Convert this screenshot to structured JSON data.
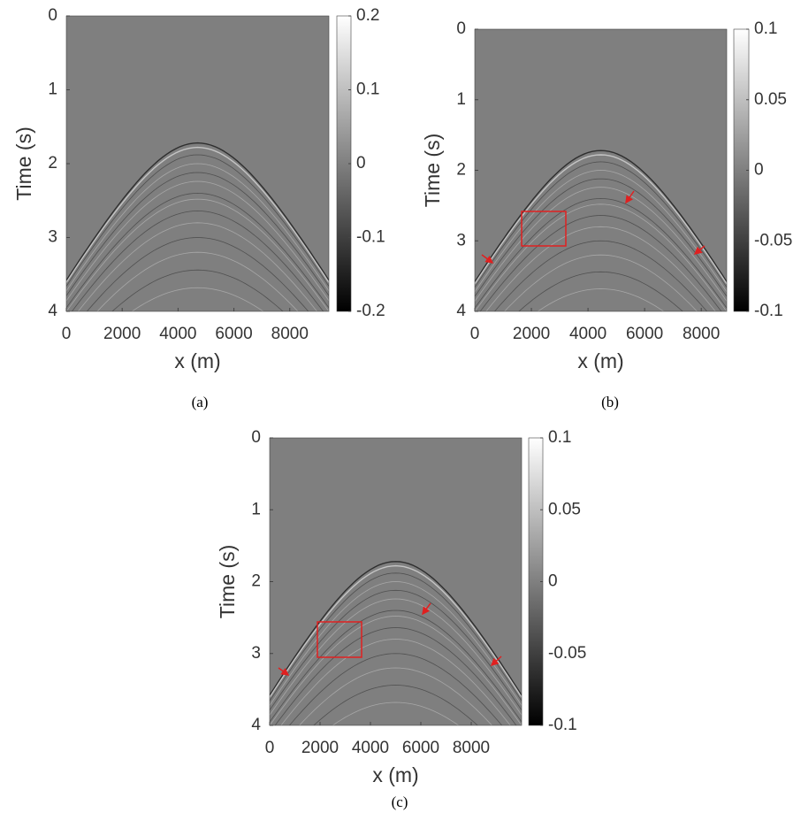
{
  "chart_data": [
    {
      "type": "image",
      "caption": "(a)",
      "xlabel": "x (m)",
      "ylabel": "Time (s)",
      "xlim": [
        0,
        9400
      ],
      "xticks": [
        0,
        2000,
        4000,
        6000,
        8000
      ],
      "ylim": [
        0,
        4
      ],
      "yticks": [
        0,
        1,
        2,
        3,
        4
      ],
      "clim": [
        -0.2,
        0.2
      ],
      "cticks": [
        -0.2,
        -0.1,
        0,
        0.1,
        0.2
      ]
    },
    {
      "type": "image",
      "caption": "(b)",
      "xlabel": "x (m)",
      "ylabel": "Time (s)",
      "xlim": [
        0,
        8900
      ],
      "xticks": [
        0,
        2000,
        4000,
        6000,
        8000
      ],
      "ylim": [
        0,
        4
      ],
      "yticks": [
        0,
        1,
        2,
        3,
        4
      ],
      "clim": [
        -0.1,
        0.1
      ],
      "cticks": [
        -0.1,
        -0.05,
        0,
        0.05,
        0.1
      ]
    },
    {
      "type": "image",
      "caption": "(c)",
      "xlabel": "x (m)",
      "ylabel": "Time (s)",
      "xlim": [
        0,
        10000
      ],
      "xticks": [
        0,
        2000,
        4000,
        6000,
        8000
      ],
      "ylim": [
        0,
        4
      ],
      "yticks": [
        0,
        1,
        2,
        3,
        4
      ],
      "clim": [
        -0.1,
        0.1
      ],
      "cticks": [
        -0.1,
        -0.05,
        0,
        0.05,
        0.1
      ]
    }
  ]
}
